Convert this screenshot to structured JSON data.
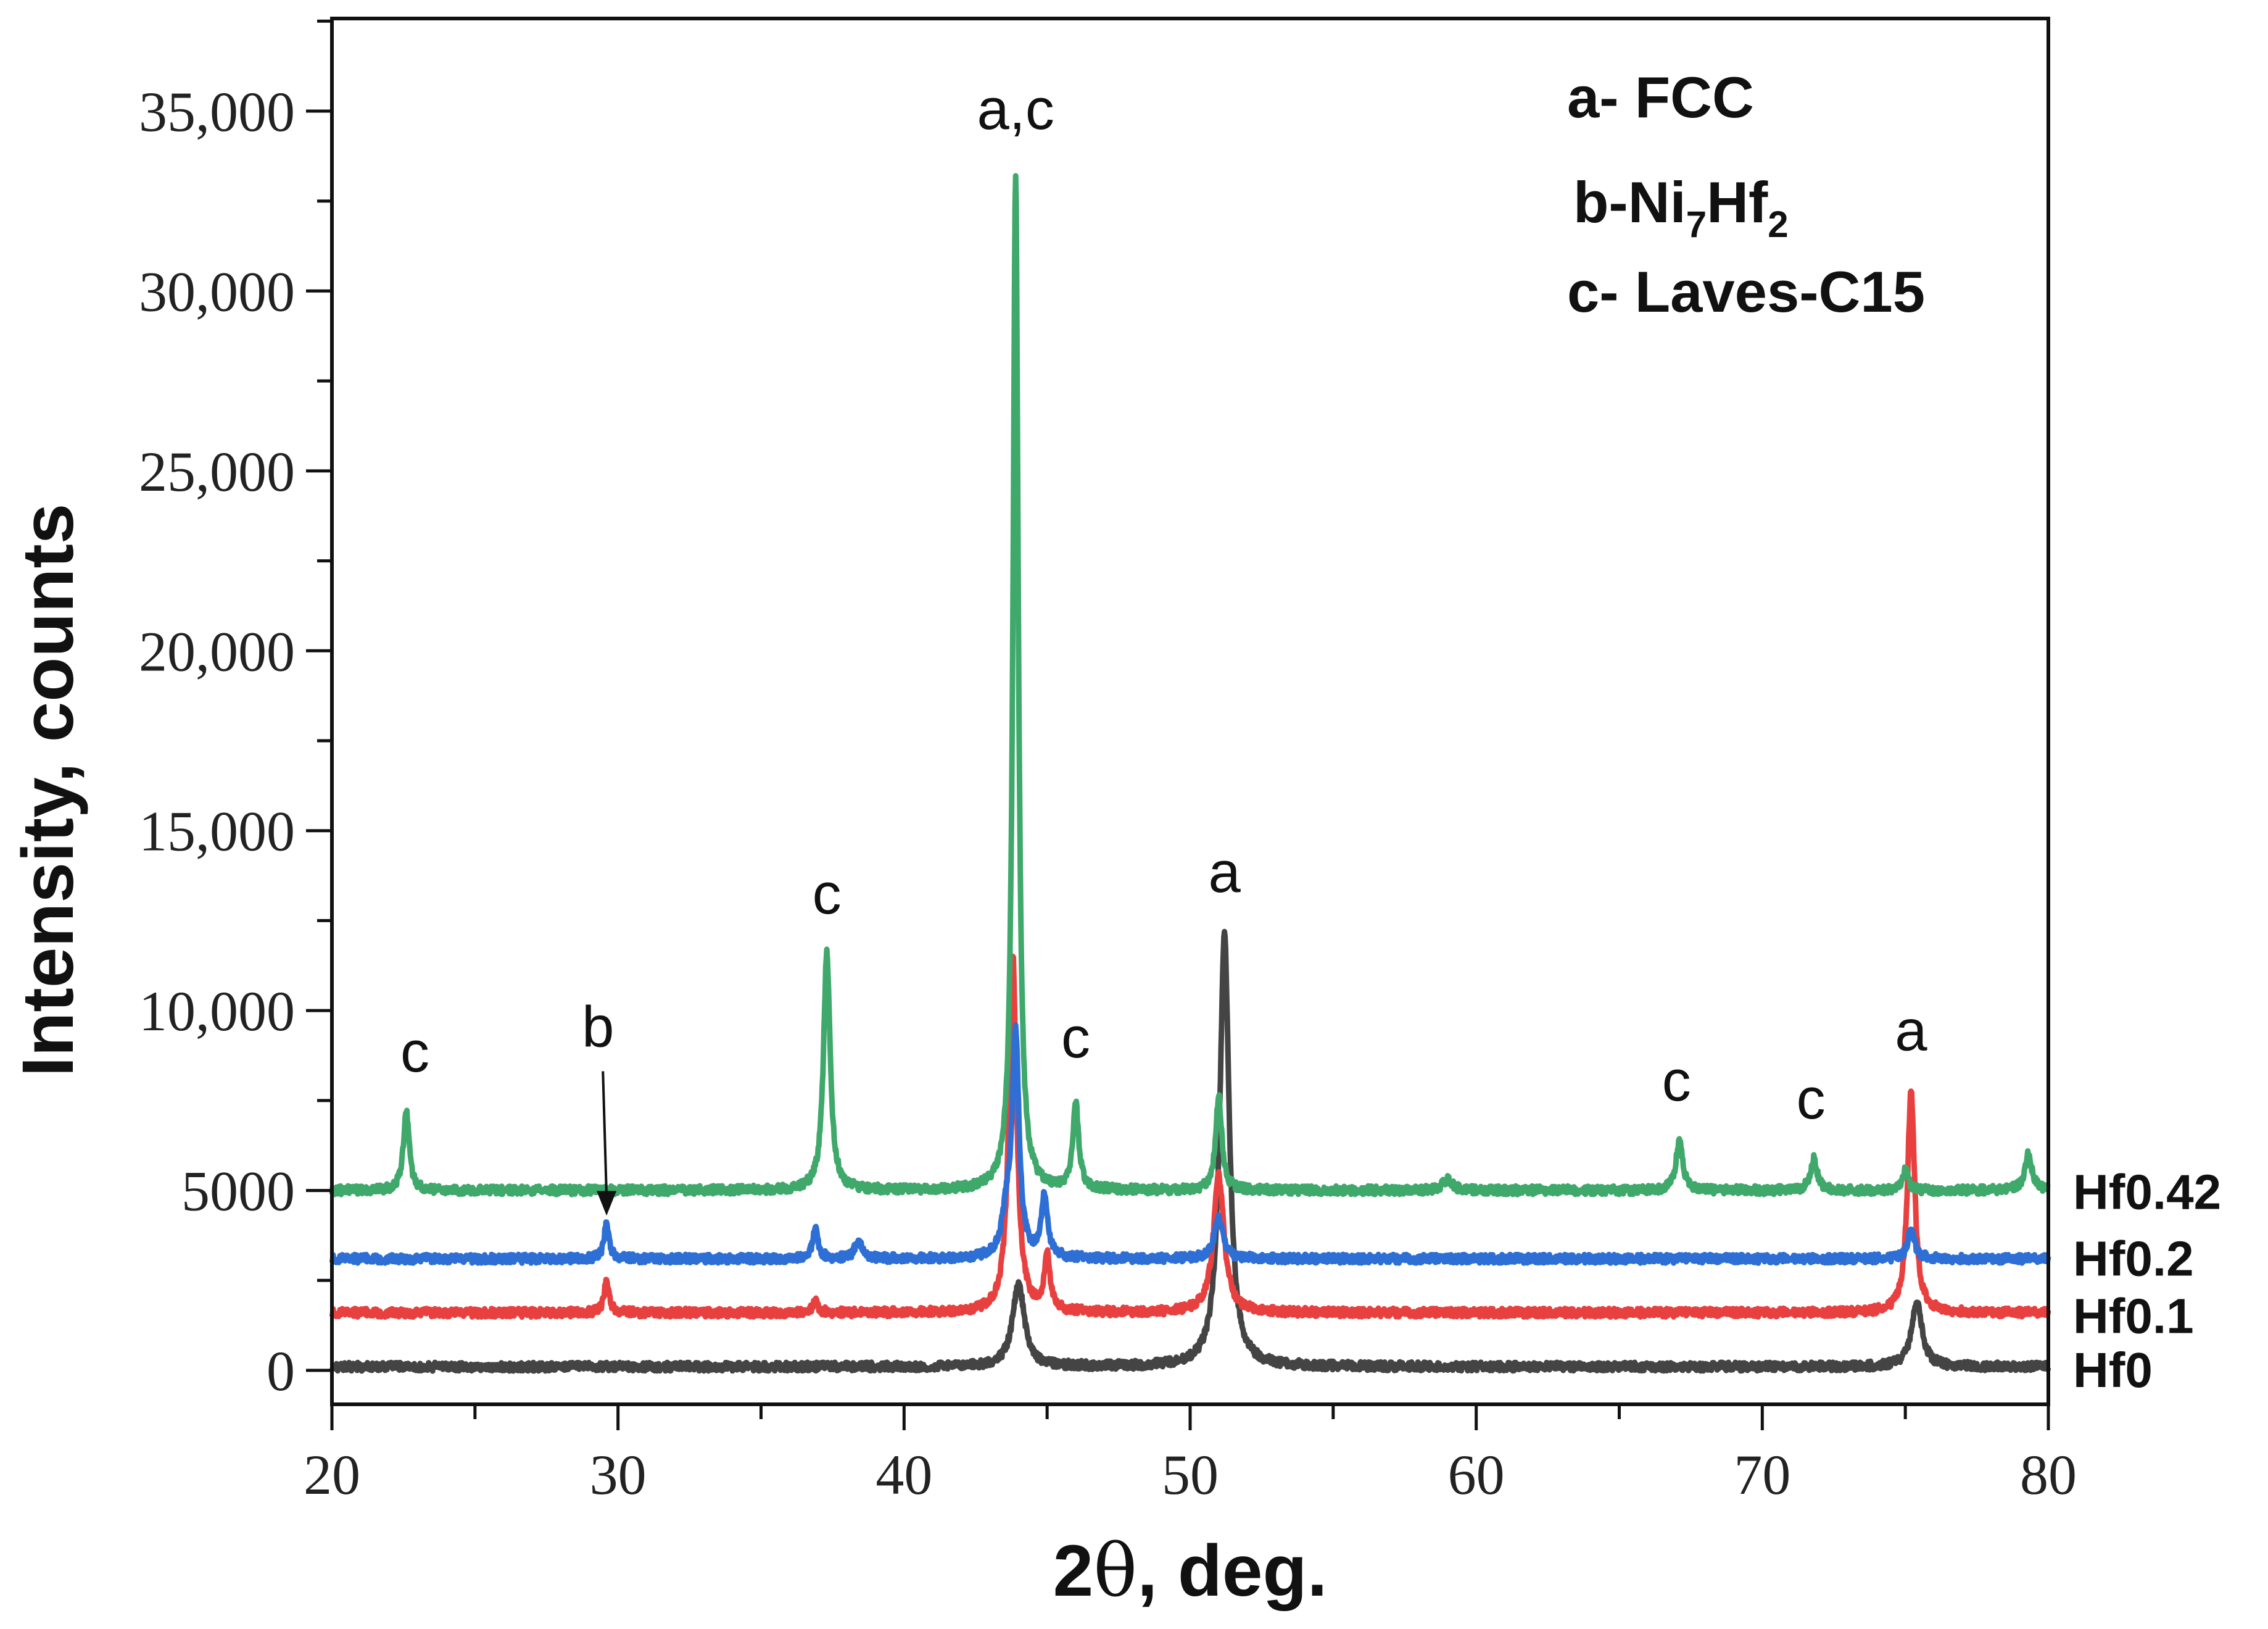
{
  "chart_data": {
    "type": "line",
    "title": "",
    "xlabel_prefix": "2",
    "xlabel_symbol": "θ",
    "xlabel_suffix": ", deg.",
    "ylabel": "Intensity, counts",
    "xlim": [
      20,
      80
    ],
    "ylim": [
      -1000,
      37500
    ],
    "x_ticks": [
      {
        "value": 20,
        "label": "20"
      },
      {
        "value": 30,
        "label": "30"
      },
      {
        "value": 40,
        "label": "40"
      },
      {
        "value": 50,
        "label": "50"
      },
      {
        "value": 60,
        "label": "60"
      },
      {
        "value": 70,
        "label": "70"
      },
      {
        "value": 80,
        "label": "80"
      }
    ],
    "y_ticks": [
      {
        "value": 0,
        "label": "0"
      },
      {
        "value": 5000,
        "label": "5000"
      },
      {
        "value": 10000,
        "label": "10,000"
      },
      {
        "value": 15000,
        "label": "15,000"
      },
      {
        "value": 20000,
        "label": "20,000"
      },
      {
        "value": 25000,
        "label": "25,000"
      },
      {
        "value": 30000,
        "label": "30,000"
      },
      {
        "value": 35000,
        "label": "35,000"
      }
    ],
    "series": [
      {
        "name": "Hf0",
        "color": "#444444",
        "baseline": 100,
        "peaks": [
          {
            "x": 44.0,
            "y": 2400,
            "w": 0.25
          },
          {
            "x": 51.2,
            "y": 12100,
            "w": 0.2
          },
          {
            "x": 75.4,
            "y": 1900,
            "w": 0.22
          }
        ]
      },
      {
        "name": "Hf0.1",
        "color": "#e8403f",
        "baseline": 1600,
        "peaks": [
          {
            "x": 29.6,
            "y": 2500,
            "w": 0.1
          },
          {
            "x": 36.9,
            "y": 1900,
            "w": 0.12
          },
          {
            "x": 43.8,
            "y": 11500,
            "w": 0.16
          },
          {
            "x": 45.0,
            "y": 3100,
            "w": 0.12
          },
          {
            "x": 51.0,
            "y": 5400,
            "w": 0.22
          },
          {
            "x": 75.2,
            "y": 7800,
            "w": 0.15
          }
        ]
      },
      {
        "name": "Hf0.2",
        "color": "#2e6fd6",
        "baseline": 3100,
        "peaks": [
          {
            "x": 29.6,
            "y": 4100,
            "w": 0.1
          },
          {
            "x": 36.9,
            "y": 3900,
            "w": 0.12
          },
          {
            "x": 38.4,
            "y": 3600,
            "w": 0.15
          },
          {
            "x": 43.6,
            "y": 4200,
            "w": 0.2
          },
          {
            "x": 43.9,
            "y": 9200,
            "w": 0.14
          },
          {
            "x": 44.9,
            "y": 4800,
            "w": 0.13
          },
          {
            "x": 51.0,
            "y": 4200,
            "w": 0.18
          },
          {
            "x": 75.2,
            "y": 3900,
            "w": 0.15
          }
        ]
      },
      {
        "name": "Hf0.42",
        "color": "#3fa86b",
        "baseline": 5000,
        "peaks": [
          {
            "x": 22.6,
            "y": 7200,
            "w": 0.12
          },
          {
            "x": 37.3,
            "y": 11600,
            "w": 0.14
          },
          {
            "x": 43.9,
            "y": 33300,
            "w": 0.11
          },
          {
            "x": 46.0,
            "y": 7400,
            "w": 0.12
          },
          {
            "x": 51.0,
            "y": 7600,
            "w": 0.13
          },
          {
            "x": 59.0,
            "y": 5300,
            "w": 0.2
          },
          {
            "x": 67.1,
            "y": 6400,
            "w": 0.14
          },
          {
            "x": 71.8,
            "y": 5900,
            "w": 0.14
          },
          {
            "x": 75.0,
            "y": 5600,
            "w": 0.12
          },
          {
            "x": 79.3,
            "y": 6000,
            "w": 0.15
          }
        ]
      }
    ],
    "series_labels": [
      {
        "text": "Hf0.42",
        "series": "Hf0.42"
      },
      {
        "text": "Hf0.2",
        "series": "Hf0.2"
      },
      {
        "text": "Hf0.1",
        "series": "Hf0.1"
      },
      {
        "text": "Hf0",
        "series": "Hf0"
      }
    ],
    "peak_annotations": [
      {
        "text": "c",
        "x": 22.9,
        "y": 8300
      },
      {
        "text": "b",
        "x": 29.3,
        "y": 9000,
        "arrow_to": [
          29.6,
          4300
        ]
      },
      {
        "text": "c",
        "x": 37.3,
        "y": 12700
      },
      {
        "text": "a,c",
        "x": 43.9,
        "y": 34500
      },
      {
        "text": "c",
        "x": 46.0,
        "y": 8700
      },
      {
        "text": "a",
        "x": 51.2,
        "y": 13300
      },
      {
        "text": "c",
        "x": 67.0,
        "y": 7500
      },
      {
        "text": "c",
        "x": 71.7,
        "y": 7000
      },
      {
        "text": "a",
        "x": 75.2,
        "y": 8900
      }
    ],
    "legend": {
      "placement": "top-right",
      "entries": [
        {
          "prefix": "a- FCC"
        },
        {
          "prefix": "b-Ni",
          "sub1": "7",
          "middle": "Hf",
          "sub2": "2"
        },
        {
          "prefix": "c- Laves-C15"
        }
      ]
    }
  }
}
